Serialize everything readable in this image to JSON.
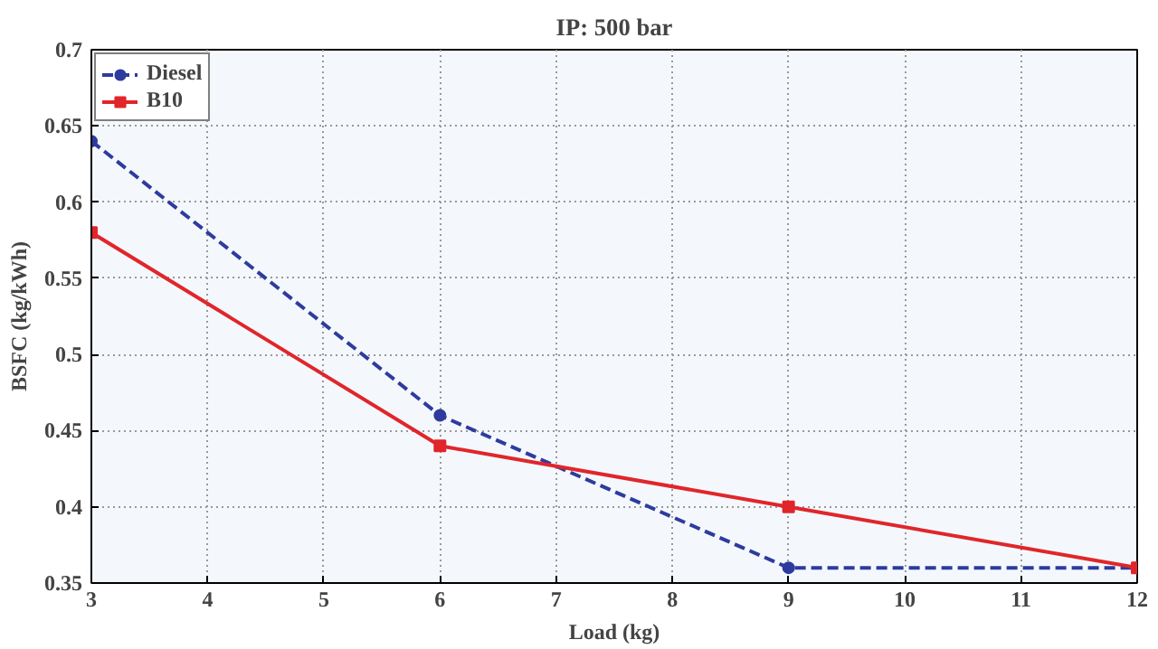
{
  "chart_data": {
    "type": "line",
    "title": "IP: 500 bar",
    "xlabel": "Load (kg)",
    "ylabel": "BSFC (kg/kWh)",
    "x": [
      3,
      6,
      9,
      12
    ],
    "series": [
      {
        "name": "Diesel",
        "color": "#2e3b9e",
        "values": [
          0.64,
          0.46,
          0.36,
          0.36
        ],
        "line_style": "dashed",
        "marker": "circle"
      },
      {
        "name": "B10",
        "color": "#e0262b",
        "values": [
          0.58,
          0.44,
          0.4,
          0.36
        ],
        "line_style": "solid",
        "marker": "square"
      }
    ],
    "xlim": [
      3,
      12
    ],
    "xticks": [
      3,
      4,
      5,
      6,
      7,
      8,
      9,
      10,
      11,
      12
    ],
    "ylim": [
      0.35,
      0.7
    ],
    "yticks": [
      0.35,
      0.4,
      0.45,
      0.5,
      0.55,
      0.6,
      0.65,
      0.7
    ],
    "grid": true,
    "legend": "top left"
  }
}
